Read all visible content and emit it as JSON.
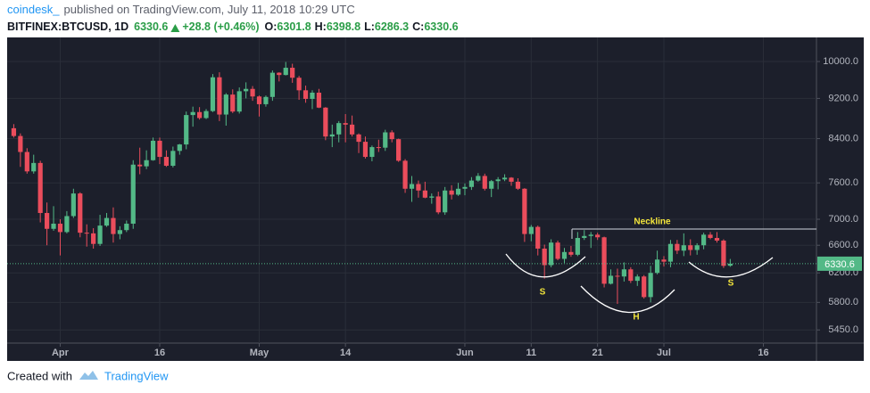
{
  "header": {
    "author": "coindesk_",
    "published": "published on TradingView.com, July 11, 2018 10:29 UTC",
    "symbol": "BITFINEX:BTCUSD, 1D",
    "last": "6330.6",
    "change": "+28.8 (+0.46%)",
    "ohlc": [
      [
        "O:",
        "6301.8"
      ],
      [
        "H:",
        "6398.8"
      ],
      [
        "L:",
        "6286.3"
      ],
      [
        "C:",
        "6330.6"
      ]
    ]
  },
  "footer": {
    "created": "Created with",
    "brand": "TradingView"
  },
  "chart_data": {
    "type": "candlestick",
    "log_scale": true,
    "grid": true,
    "up_color": "#53b987",
    "down_color": "#eb4d5c",
    "annotations": [
      "Neckline",
      "S",
      "H",
      "S"
    ],
    "xlim": [
      "2018-03-24",
      "2018-07-24"
    ],
    "xticks": [
      {
        "value": "2018-04-01",
        "label": "Apr"
      },
      {
        "value": "2018-04-16",
        "label": "16"
      },
      {
        "value": "2018-05-01",
        "label": "May"
      },
      {
        "value": "2018-05-14",
        "label": "14"
      },
      {
        "value": "2018-06-01",
        "label": "Jun"
      },
      {
        "value": "2018-06-11",
        "label": "11"
      },
      {
        "value": "2018-06-21",
        "label": "21"
      },
      {
        "value": "2018-07-01",
        "label": "Jul"
      },
      {
        "value": "2018-07-16",
        "label": "16"
      }
    ],
    "ylim": [
      5290,
      10560
    ],
    "yticks": [
      {
        "value": 10000,
        "label": "10000.0"
      },
      {
        "value": 9200,
        "label": "9200.0"
      },
      {
        "value": 8400,
        "label": "8400.0"
      },
      {
        "value": 7600,
        "label": "7600.0"
      },
      {
        "value": 7000,
        "label": "7000.0"
      },
      {
        "value": 6600,
        "label": "6600.0"
      },
      {
        "value": 6200,
        "label": "6200.0"
      },
      {
        "value": 5800,
        "label": "5800.0"
      },
      {
        "value": 5450,
        "label": "5450.0"
      }
    ],
    "x": [
      "2018-03-25",
      "2018-03-26",
      "2018-03-27",
      "2018-03-28",
      "2018-03-29",
      "2018-03-30",
      "2018-03-31",
      "2018-04-01",
      "2018-04-02",
      "2018-04-03",
      "2018-04-04",
      "2018-04-05",
      "2018-04-06",
      "2018-04-07",
      "2018-04-08",
      "2018-04-09",
      "2018-04-10",
      "2018-04-11",
      "2018-04-12",
      "2018-04-13",
      "2018-04-14",
      "2018-04-15",
      "2018-04-16",
      "2018-04-17",
      "2018-04-18",
      "2018-04-19",
      "2018-04-20",
      "2018-04-21",
      "2018-04-22",
      "2018-04-23",
      "2018-04-24",
      "2018-04-25",
      "2018-04-26",
      "2018-04-27",
      "2018-04-28",
      "2018-04-29",
      "2018-04-30",
      "2018-05-01",
      "2018-05-02",
      "2018-05-03",
      "2018-05-04",
      "2018-05-05",
      "2018-05-06",
      "2018-05-07",
      "2018-05-08",
      "2018-05-09",
      "2018-05-10",
      "2018-05-11",
      "2018-05-12",
      "2018-05-13",
      "2018-05-14",
      "2018-05-15",
      "2018-05-16",
      "2018-05-17",
      "2018-05-18",
      "2018-05-19",
      "2018-05-20",
      "2018-05-21",
      "2018-05-22",
      "2018-05-23",
      "2018-05-24",
      "2018-05-25",
      "2018-05-26",
      "2018-05-27",
      "2018-05-28",
      "2018-05-29",
      "2018-05-30",
      "2018-05-31",
      "2018-06-01",
      "2018-06-02",
      "2018-06-03",
      "2018-06-04",
      "2018-06-05",
      "2018-06-06",
      "2018-06-07",
      "2018-06-08",
      "2018-06-09",
      "2018-06-10",
      "2018-06-11",
      "2018-06-12",
      "2018-06-13",
      "2018-06-14",
      "2018-06-15",
      "2018-06-16",
      "2018-06-17",
      "2018-06-18",
      "2018-06-19",
      "2018-06-20",
      "2018-06-21",
      "2018-06-22",
      "2018-06-23",
      "2018-06-24",
      "2018-06-25",
      "2018-06-26",
      "2018-06-27",
      "2018-06-28",
      "2018-06-29",
      "2018-06-30",
      "2018-07-01",
      "2018-07-02",
      "2018-07-03",
      "2018-07-04",
      "2018-07-05",
      "2018-07-06",
      "2018-07-07",
      "2018-07-08",
      "2018-07-09",
      "2018-07-10",
      "2018-07-11"
    ],
    "open": [
      8600,
      8450,
      8150,
      7800,
      7950,
      7100,
      6850,
      6930,
      6800,
      7050,
      7420,
      6790,
      6780,
      6620,
      6900,
      7020,
      6770,
      6830,
      6930,
      7920,
      7890,
      8000,
      8360,
      8060,
      7900,
      8170,
      8290,
      8860,
      8920,
      8800,
      8940,
      9650,
      8870,
      9280,
      8930,
      9350,
      9400,
      9240,
      9080,
      9230,
      9750,
      9700,
      9860,
      9640,
      9370,
      9190,
      9320,
      9010,
      8440,
      8480,
      8700,
      8670,
      8480,
      8340,
      8060,
      8240,
      8230,
      8520,
      8390,
      7990,
      7500,
      7580,
      7470,
      7350,
      7370,
      7110,
      7470,
      7400,
      7500,
      7530,
      7640,
      7720,
      7500,
      7630,
      7660,
      7690,
      7620,
      7500,
      6770,
      6880,
      6550,
      6310,
      6640,
      6400,
      6500,
      6460,
      6710,
      6740,
      6760,
      6720,
      6050,
      6160,
      6150,
      6250,
      6090,
      6150,
      5870,
      6200,
      6390,
      6360,
      6620,
      6520,
      6600,
      6530,
      6600,
      6760,
      6710,
      6670,
      6301.8
    ],
    "high": [
      8680,
      8500,
      8220,
      8100,
      7990,
      7270,
      7210,
      7000,
      7130,
      7500,
      7440,
      6920,
      6860,
      7070,
      7100,
      7190,
      6890,
      6980,
      8000,
      8230,
      8180,
      8420,
      8420,
      8180,
      8250,
      8300,
      8930,
      9030,
      9020,
      8980,
      9720,
      9760,
      9310,
      9390,
      9430,
      9540,
      9460,
      9260,
      9260,
      9800,
      9760,
      9990,
      9950,
      9680,
      9470,
      9370,
      9400,
      9020,
      8670,
      8740,
      8880,
      8850,
      8500,
      8440,
      8270,
      8380,
      8570,
      8560,
      8400,
      8020,
      7720,
      7640,
      7620,
      7420,
      7450,
      7530,
      7560,
      7600,
      7590,
      7700,
      7770,
      7760,
      7650,
      7700,
      7750,
      7700,
      7680,
      7510,
      6910,
      6900,
      6610,
      6690,
      6670,
      6560,
      6590,
      6800,
      6830,
      6800,
      6790,
      6730,
      6250,
      6260,
      6350,
      6280,
      6180,
      6170,
      6300,
      6520,
      6440,
      6680,
      6680,
      6780,
      6690,
      6630,
      6790,
      6800,
      6800,
      6690,
      6398.8
    ],
    "low": [
      8420,
      7880,
      7760,
      7760,
      6950,
      6600,
      6820,
      6450,
      6780,
      7020,
      6720,
      6580,
      6550,
      6590,
      6880,
      6640,
      6690,
      6800,
      6850,
      7750,
      7840,
      7990,
      7930,
      7880,
      7870,
      8100,
      8200,
      8630,
      8770,
      8780,
      8920,
      8740,
      8650,
      8900,
      8890,
      9200,
      9150,
      8830,
      9030,
      9150,
      9560,
      9690,
      9530,
      9170,
      9110,
      8980,
      9000,
      8370,
      8240,
      8330,
      8330,
      8440,
      8130,
      8030,
      7980,
      8150,
      8170,
      8330,
      7970,
      7430,
      7280,
      7350,
      7340,
      7250,
      7080,
      7070,
      7320,
      7380,
      7390,
      7480,
      7620,
      7470,
      7360,
      7490,
      7630,
      7550,
      7480,
      6650,
      6660,
      6450,
      6120,
      6280,
      6380,
      6340,
      6430,
      6440,
      6680,
      6560,
      6680,
      6000,
      6040,
      5780,
      6080,
      6060,
      6020,
      5850,
      5800,
      6180,
      6290,
      6280,
      6470,
      6440,
      6450,
      6460,
      6540,
      6690,
      6640,
      6270,
      6286.3
    ],
    "close": [
      8450,
      8150,
      7800,
      7950,
      7100,
      6850,
      6930,
      6800,
      7050,
      7420,
      6790,
      6780,
      6620,
      6900,
      7020,
      6770,
      6830,
      6930,
      7920,
      7890,
      8000,
      8360,
      8060,
      7900,
      8170,
      8290,
      8860,
      8920,
      8800,
      8940,
      9650,
      8870,
      9280,
      8930,
      9350,
      9400,
      9240,
      9080,
      9230,
      9750,
      9700,
      9860,
      9640,
      9370,
      9190,
      9320,
      9010,
      8440,
      8480,
      8700,
      8670,
      8480,
      8340,
      8060,
      8240,
      8230,
      8520,
      8390,
      7990,
      7500,
      7580,
      7470,
      7350,
      7370,
      7110,
      7470,
      7400,
      7500,
      7530,
      7640,
      7720,
      7500,
      7630,
      7660,
      7690,
      7620,
      7500,
      6770,
      6880,
      6550,
      6310,
      6640,
      6400,
      6500,
      6460,
      6710,
      6740,
      6760,
      6720,
      6050,
      6160,
      6150,
      6250,
      6090,
      6150,
      5870,
      6200,
      6390,
      6360,
      6620,
      6520,
      6600,
      6530,
      6600,
      6760,
      6710,
      6670,
      6300,
      6330.6
    ]
  }
}
